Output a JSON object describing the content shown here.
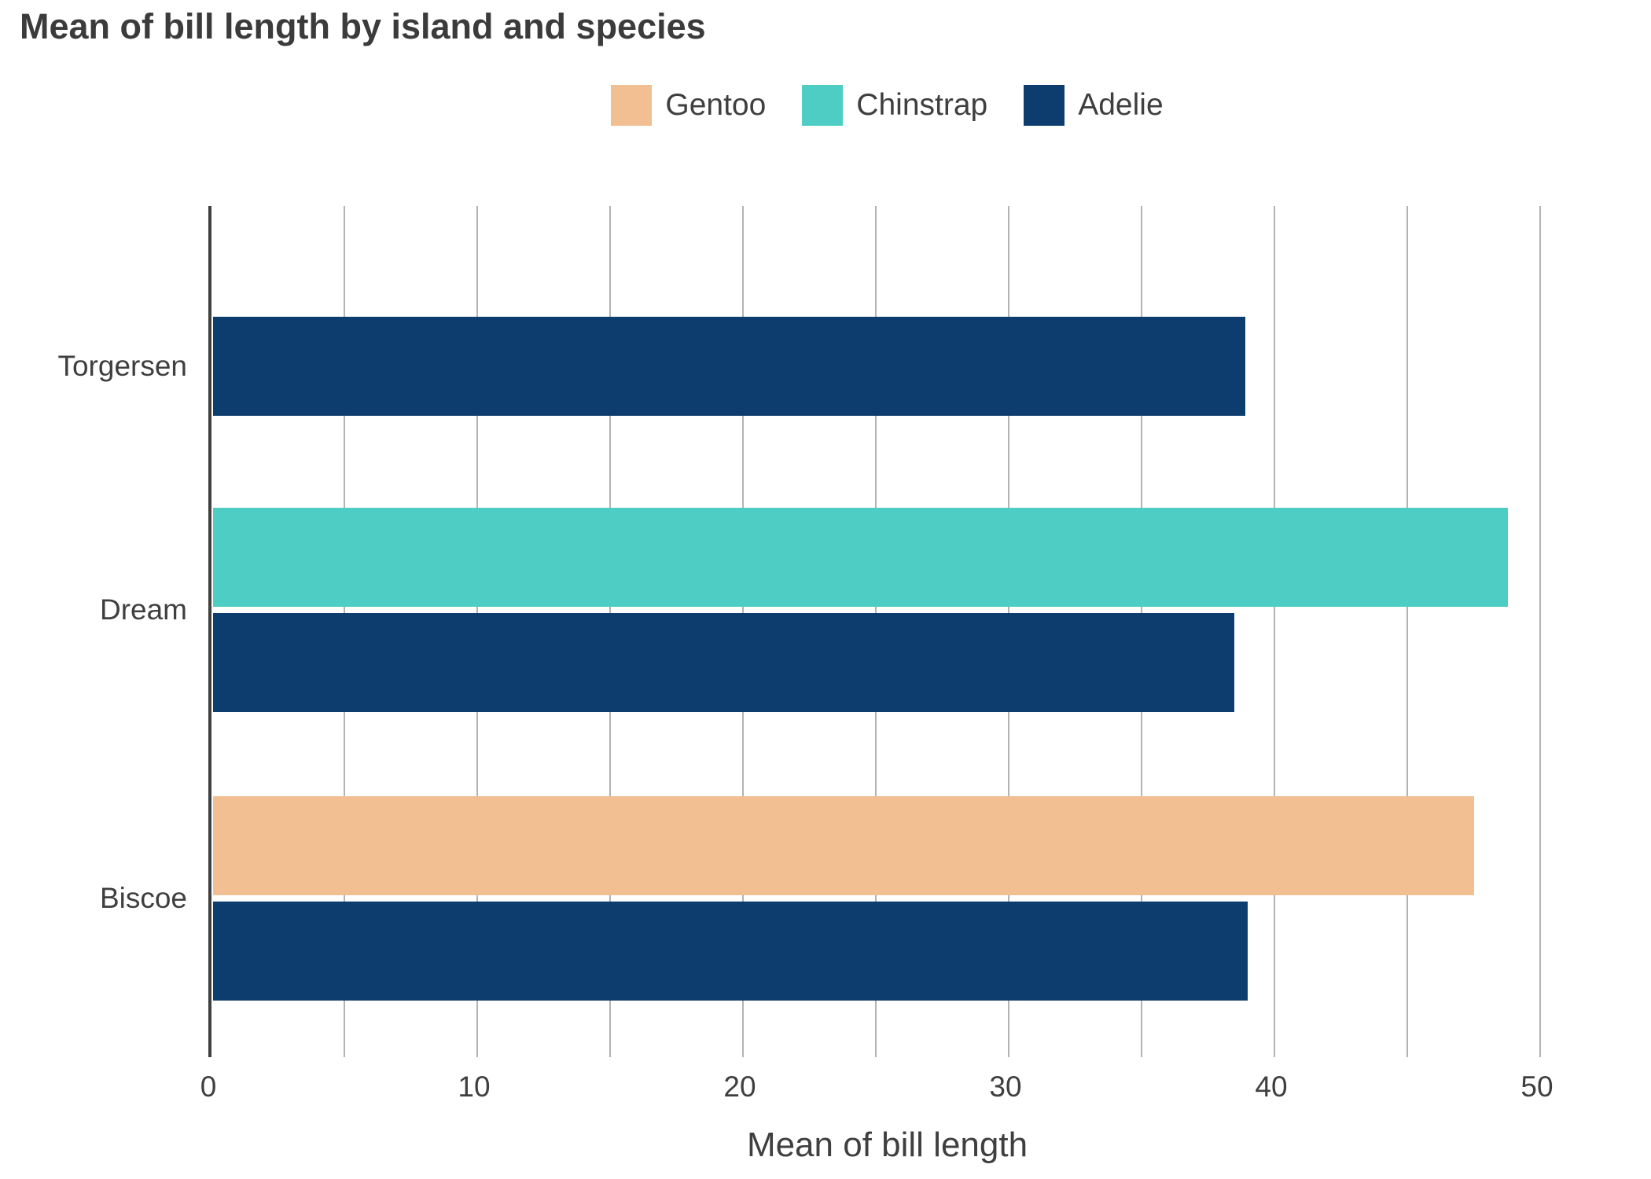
{
  "title": "Mean of bill length by island and species",
  "chart_data": {
    "type": "bar",
    "orientation": "horizontal",
    "title": "Mean of bill length by island and species",
    "xlabel": "Mean of bill length",
    "ylabel": "",
    "categories": [
      "Torgersen",
      "Dream",
      "Biscoe"
    ],
    "series": [
      {
        "name": "Gentoo",
        "color": "#f1bf92",
        "values": [
          null,
          null,
          47.5
        ]
      },
      {
        "name": "Chinstrap",
        "color": "#4ecdc4",
        "values": [
          null,
          48.8,
          null
        ]
      },
      {
        "name": "Adelie",
        "color": "#0d3d6e",
        "values": [
          38.9,
          38.5,
          39.0
        ]
      }
    ],
    "xlim": [
      0,
      50
    ],
    "xticks": [
      0,
      10,
      20,
      30,
      40,
      50
    ],
    "gridline_step": 5,
    "grid": "vertical",
    "legend_position": "top"
  },
  "colors": {
    "axis": "#404040",
    "gridline": "#b3b3b3",
    "text": "#3f3f3f",
    "title": "#3b3b3b",
    "background": "#ffffff"
  }
}
